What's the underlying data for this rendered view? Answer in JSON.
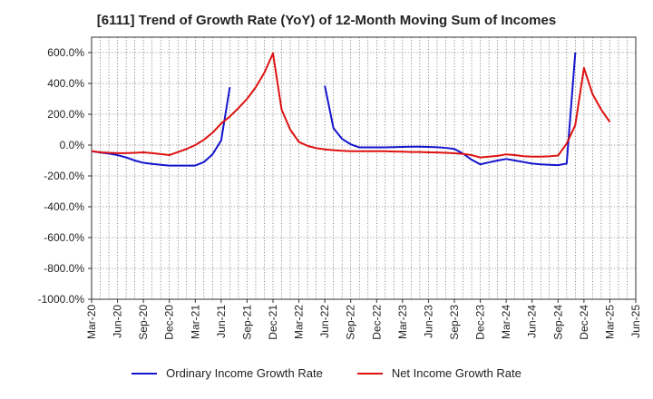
{
  "chart_data": {
    "type": "line",
    "title": "[6111]  Trend of Growth Rate (YoY) of 12-Month Moving Sum of Incomes",
    "xlabel": "",
    "ylabel": "",
    "ylim": [
      -1000,
      700
    ],
    "y_ticks": [
      600,
      400,
      200,
      0,
      -200,
      -400,
      -600,
      -800,
      -1000
    ],
    "y_tick_labels": [
      "600.0%",
      "400.0%",
      "200.0%",
      "0.0%",
      "-200.0%",
      "-400.0%",
      "-600.0%",
      "-800.0%",
      "-1000.0%"
    ],
    "x_tick_labels": [
      "Mar-20",
      "Jun-20",
      "Sep-20",
      "Dec-20",
      "Mar-21",
      "Jun-21",
      "Sep-21",
      "Dec-21",
      "Mar-22",
      "Jun-22",
      "Sep-22",
      "Dec-22",
      "Mar-23",
      "Jun-23",
      "Sep-23",
      "Dec-23",
      "Mar-24",
      "Jun-24",
      "Sep-24",
      "Dec-24",
      "Mar-25",
      "Jun-25"
    ],
    "categories": [
      "Mar-20",
      "Apr-20",
      "May-20",
      "Jun-20",
      "Jul-20",
      "Aug-20",
      "Sep-20",
      "Oct-20",
      "Nov-20",
      "Dec-20",
      "Jan-21",
      "Feb-21",
      "Mar-21",
      "Apr-21",
      "May-21",
      "Jun-21",
      "Jul-21",
      "Aug-21",
      "Sep-21",
      "Oct-21",
      "Nov-21",
      "Dec-21",
      "Jan-22",
      "Feb-22",
      "Mar-22",
      "Apr-22",
      "May-22",
      "Jun-22",
      "Jul-22",
      "Aug-22",
      "Sep-22",
      "Oct-22",
      "Nov-22",
      "Dec-22",
      "Jan-23",
      "Feb-23",
      "Mar-23",
      "Apr-23",
      "May-23",
      "Jun-23",
      "Jul-23",
      "Aug-23",
      "Sep-23",
      "Oct-23",
      "Nov-23",
      "Dec-23",
      "Jan-24",
      "Feb-24",
      "Mar-24",
      "Apr-24",
      "May-24",
      "Jun-24",
      "Jul-24",
      "Aug-24",
      "Sep-24",
      "Oct-24",
      "Nov-24",
      "Dec-24",
      "Jan-25",
      "Feb-25",
      "Mar-25",
      "Apr-25",
      "May-25",
      "Jun-25"
    ],
    "grid": true,
    "legend_position": "bottom",
    "series": [
      {
        "name": "Ordinary Income Growth Rate",
        "color": "#1414cc",
        "values": [
          -40,
          -48,
          -55,
          -65,
          -80,
          -100,
          -115,
          -122,
          -128,
          -133,
          -133,
          -133,
          -133,
          -110,
          -60,
          30,
          375,
          null,
          null,
          null,
          null,
          null,
          null,
          null,
          null,
          null,
          null,
          385,
          110,
          40,
          5,
          -15,
          -15,
          -15,
          -15,
          -13,
          -12,
          -10,
          -10,
          -12,
          -14,
          -18,
          -25,
          -55,
          -95,
          -125,
          -112,
          -100,
          -90,
          -100,
          -110,
          -120,
          -125,
          -128,
          -130,
          -120,
          600,
          null,
          null,
          null,
          null,
          null,
          null,
          null
        ]
      },
      {
        "name": "Net Income Growth Rate",
        "color": "#dd1111",
        "values": [
          -40,
          -46,
          -50,
          -52,
          -52,
          -50,
          -47,
          -52,
          -58,
          -65,
          -45,
          -25,
          0,
          35,
          80,
          140,
          185,
          240,
          300,
          375,
          470,
          595,
          230,
          100,
          20,
          -5,
          -20,
          -28,
          -33,
          -37,
          -40,
          -40,
          -40,
          -40,
          -40,
          -42,
          -43,
          -45,
          -45,
          -47,
          -48,
          -50,
          -53,
          -57,
          -65,
          -80,
          -75,
          -70,
          -60,
          -65,
          -72,
          -75,
          -75,
          -73,
          -68,
          10,
          130,
          500,
          330,
          230,
          150,
          null,
          null,
          null
        ]
      }
    ]
  }
}
